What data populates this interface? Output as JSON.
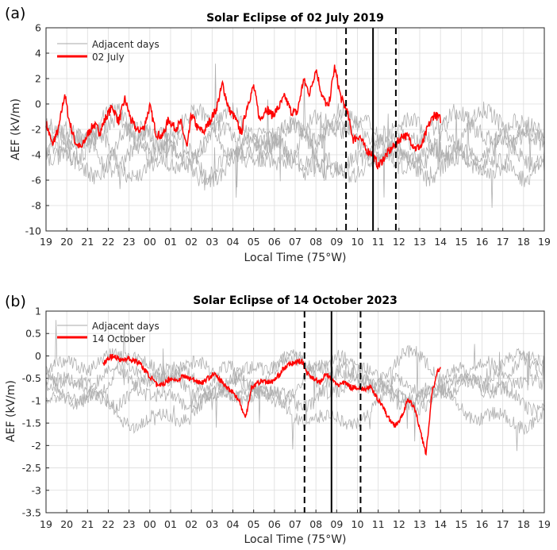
{
  "chart_data": [
    {
      "type": "line",
      "panel_label": "(a)",
      "title": "Solar Eclipse of 02 July 2019",
      "xlabel": "Local Time (75°W)",
      "ylabel": "AEF (kV/m)",
      "ylim": [
        -10,
        6
      ],
      "yticks": [
        "-10",
        "-8",
        "-6",
        "-4",
        "-2",
        "0",
        "2",
        "4",
        "6"
      ],
      "xticks": [
        "19",
        "20",
        "21",
        "22",
        "23",
        "00",
        "01",
        "02",
        "03",
        "04",
        "05",
        "06",
        "07",
        "08",
        "09",
        "10",
        "11",
        "12",
        "13",
        "14",
        "15",
        "16",
        "17",
        "18",
        "19"
      ],
      "grid": true,
      "legend": [
        "Adjacent days",
        "02 July"
      ],
      "legend_position": "top-left",
      "eclipse_lines": {
        "start": 14.45,
        "max": 15.75,
        "end": 16.85
      },
      "series": [
        {
          "name": "02 July",
          "color": "#ff0000",
          "x": [
            0,
            0.3,
            0.6,
            0.9,
            1.1,
            1.4,
            1.7,
            2.0,
            2.3,
            2.6,
            2.9,
            3.2,
            3.5,
            3.8,
            4.1,
            4.4,
            4.7,
            5.0,
            5.3,
            5.6,
            5.9,
            6.2,
            6.5,
            6.8,
            7.0,
            7.3,
            7.6,
            7.9,
            8.2,
            8.5,
            8.8,
            9.1,
            9.4,
            9.7,
            10.0,
            10.3,
            10.6,
            10.9,
            11.2,
            11.5,
            11.8,
            12.1,
            12.4,
            12.7,
            13.0,
            13.3,
            13.6,
            13.9,
            14.2,
            14.5,
            14.8,
            15.1,
            15.4,
            15.7,
            16.0,
            16.3,
            16.6,
            16.9,
            17.2,
            17.5,
            17.8,
            18.1,
            18.4,
            18.7,
            19
          ],
          "values": [
            -1.5,
            -3.2,
            -2,
            0.8,
            -1.2,
            -3,
            -3.5,
            -2.4,
            -1.6,
            -2.2,
            -1,
            -0.2,
            -1.4,
            0.4,
            -1.3,
            -2.1,
            -1.9,
            -0.2,
            -2.3,
            -2.6,
            -1.2,
            -1.9,
            -1.5,
            -3.5,
            -0.8,
            -1.9,
            -2.2,
            -1.3,
            -0.4,
            1.6,
            -0.4,
            -1.1,
            -2.3,
            -0.1,
            1.4,
            -1.3,
            -0.3,
            -0.9,
            -0.3,
            0.6,
            -0.6,
            -0.7,
            1.9,
            0.8,
            2.8,
            0.6,
            -0.3,
            2.9,
            0.5,
            -0.6,
            -2.8,
            -2.5,
            -3.6,
            -3.9,
            -4.9,
            -4.2,
            -3.6,
            -3.1,
            -2.4,
            -2.7,
            -3.5,
            -3.3,
            -1.8,
            -0.8,
            -1.2
          ]
        },
        {
          "name": "Adjacent days",
          "color": "#b0b0b0",
          "x": [
            0,
            19
          ],
          "values": [
            -4,
            -3
          ]
        }
      ]
    },
    {
      "type": "line",
      "panel_label": "(b)",
      "title": "Solar Eclipse of 14 October 2023",
      "xlabel": "Local Time (75°W)",
      "ylabel": "AEF (kV/m)",
      "ylim": [
        -3.5,
        1
      ],
      "yticks": [
        "-3.5",
        "-3",
        "-2.5",
        "-2",
        "-1.5",
        "-1",
        "-0.5",
        "0",
        "0.5",
        "1"
      ],
      "xticks": [
        "19",
        "20",
        "21",
        "22",
        "23",
        "00",
        "01",
        "02",
        "03",
        "04",
        "05",
        "06",
        "07",
        "08",
        "09",
        "10",
        "11",
        "12",
        "13",
        "14",
        "15",
        "16",
        "17",
        "18",
        "19"
      ],
      "grid": true,
      "legend": [
        "Adjacent days",
        "14 October"
      ],
      "legend_position": "top-left",
      "eclipse_lines": {
        "start": 12.45,
        "max": 13.75,
        "end": 15.15
      },
      "series": [
        {
          "name": "14 October",
          "color": "#ff0000",
          "x": [
            2.75,
            3.0,
            3.3,
            3.6,
            3.9,
            4.2,
            4.5,
            4.8,
            5.1,
            5.4,
            5.7,
            6.0,
            6.3,
            6.6,
            6.9,
            7.2,
            7.5,
            7.8,
            8.1,
            8.4,
            8.7,
            9.0,
            9.3,
            9.6,
            9.9,
            10.2,
            10.5,
            10.8,
            11.1,
            11.4,
            11.7,
            12.0,
            12.3,
            12.6,
            12.9,
            13.2,
            13.5,
            13.8,
            14.1,
            14.4,
            14.7,
            15.0,
            15.3,
            15.6,
            15.9,
            16.2,
            16.5,
            16.8,
            17.1,
            17.4,
            17.7,
            18.0,
            18.3,
            18.6,
            18.9,
            19
          ],
          "values": [
            -0.2,
            -0.05,
            0,
            -0.1,
            -0.05,
            -0.1,
            -0.15,
            -0.35,
            -0.5,
            -0.7,
            -0.6,
            -0.5,
            -0.55,
            -0.45,
            -0.5,
            -0.55,
            -0.6,
            -0.5,
            -0.4,
            -0.55,
            -0.7,
            -0.8,
            -1.0,
            -1.4,
            -0.7,
            -0.6,
            -0.55,
            -0.6,
            -0.5,
            -0.3,
            -0.2,
            -0.15,
            -0.1,
            -0.4,
            -0.5,
            -0.6,
            -0.4,
            -0.55,
            -0.65,
            -0.6,
            -0.7,
            -0.7,
            -0.75,
            -0.7,
            -0.9,
            -1.1,
            -1.4,
            -1.55,
            -1.4,
            -1.0,
            -1.1,
            -1.6,
            -2.2,
            -0.8,
            -0.3,
            -0.3
          ]
        },
        {
          "name": "Adjacent days",
          "color": "#b0b0b0",
          "x": [
            0,
            19
          ],
          "values": [
            -0.3,
            -0.35
          ]
        }
      ]
    }
  ]
}
